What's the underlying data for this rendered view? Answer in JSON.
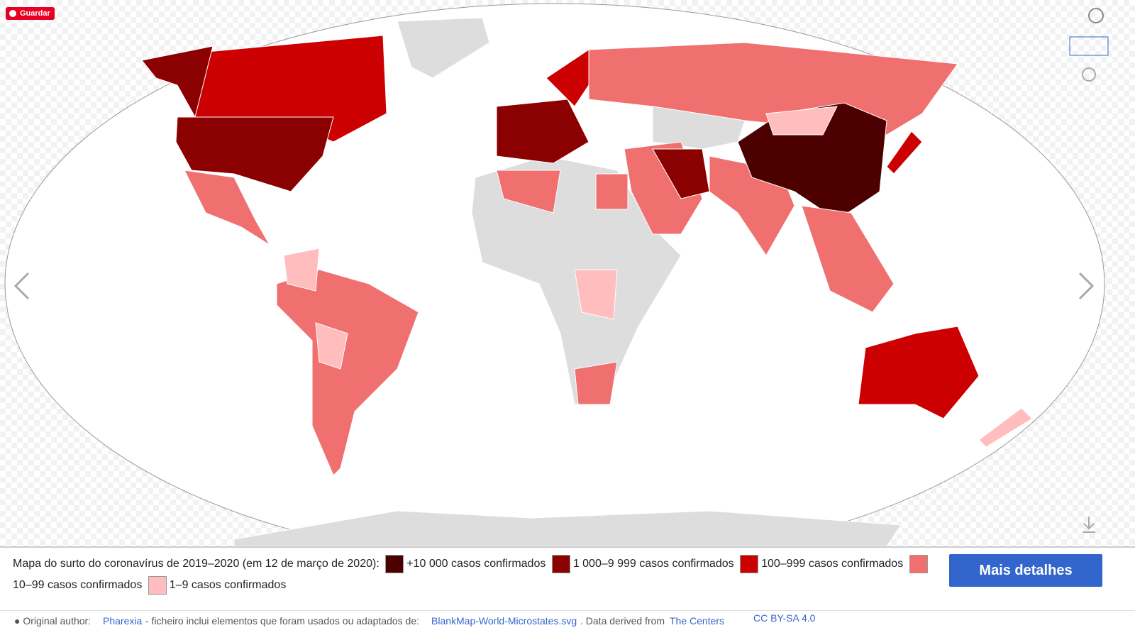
{
  "toolbar": {
    "save_button": "Guardar"
  },
  "caption": {
    "text": "Mapa do surto do coronavírus de 2019–2020 (em 12 de março de 2020):",
    "legend": [
      {
        "label": "+10 000 casos confirmados",
        "color": "#4d0000"
      },
      {
        "label": "1 000–9 999 casos confirmados",
        "color": "#8b0000"
      },
      {
        "label": "100–999 casos confirmados",
        "color": "#cc0000"
      },
      {
        "label": "10–99 casos confirmados",
        "color": "#f07070"
      },
      {
        "label": "1–9 casos confirmados",
        "color": "#ffbdbd"
      }
    ]
  },
  "details_button": "Mais detalhes",
  "attribution": {
    "prefix": "Original author:",
    "author": "Pharexia",
    "middle": "- ficheiro inclui elementos que foram usados ou adaptados de:",
    "source": "BlankMap-World-Microstates.svg",
    "derived": ". Data derived from",
    "link": "The Centers",
    "license": "CC BY-SA 4.0"
  }
}
